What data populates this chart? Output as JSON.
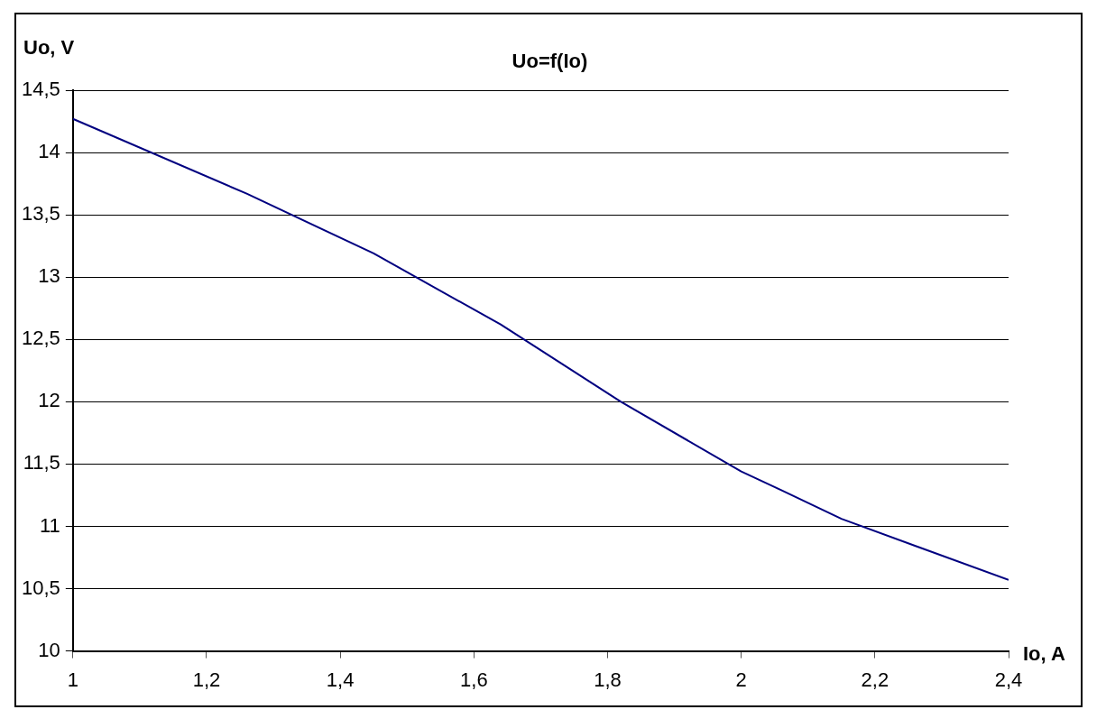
{
  "chart_data": {
    "type": "line",
    "title": "Uo=f(Io)",
    "xlabel": "Io, A",
    "ylabel": "Uo, V",
    "x": [
      1,
      1.26,
      1.45,
      1.64,
      1.82,
      2.0,
      2.06,
      2.15,
      2.4
    ],
    "series": [
      {
        "color": "#000080",
        "values": [
          14.27,
          13.67,
          13.19,
          12.62,
          12.0,
          11.44,
          11.29,
          11.06,
          10.57
        ]
      }
    ],
    "xlim": [
      1,
      2.4
    ],
    "xticks": [
      {
        "value": 1,
        "label": "1"
      },
      {
        "value": 1.2,
        "label": "1,2"
      },
      {
        "value": 1.4,
        "label": "1,4"
      },
      {
        "value": 1.6,
        "label": "1,6"
      },
      {
        "value": 1.8,
        "label": "1,8"
      },
      {
        "value": 2,
        "label": "2"
      },
      {
        "value": 2.2,
        "label": "2,2"
      },
      {
        "value": 2.4,
        "label": "2,4"
      }
    ],
    "ylim": [
      10,
      14.5
    ],
    "yticks": [
      {
        "value": 10,
        "label": "10"
      },
      {
        "value": 10.5,
        "label": "10,5"
      },
      {
        "value": 11,
        "label": "11"
      },
      {
        "value": 11.5,
        "label": "11,5"
      },
      {
        "value": 12,
        "label": "12"
      },
      {
        "value": 12.5,
        "label": "12,5"
      },
      {
        "value": 13,
        "label": "13"
      },
      {
        "value": 13.5,
        "label": "13,5"
      },
      {
        "value": 14,
        "label": "14"
      },
      {
        "value": 14.5,
        "label": "14,5"
      }
    ],
    "grid": "y",
    "legend": false,
    "marker": "none",
    "line_style": "solid"
  }
}
